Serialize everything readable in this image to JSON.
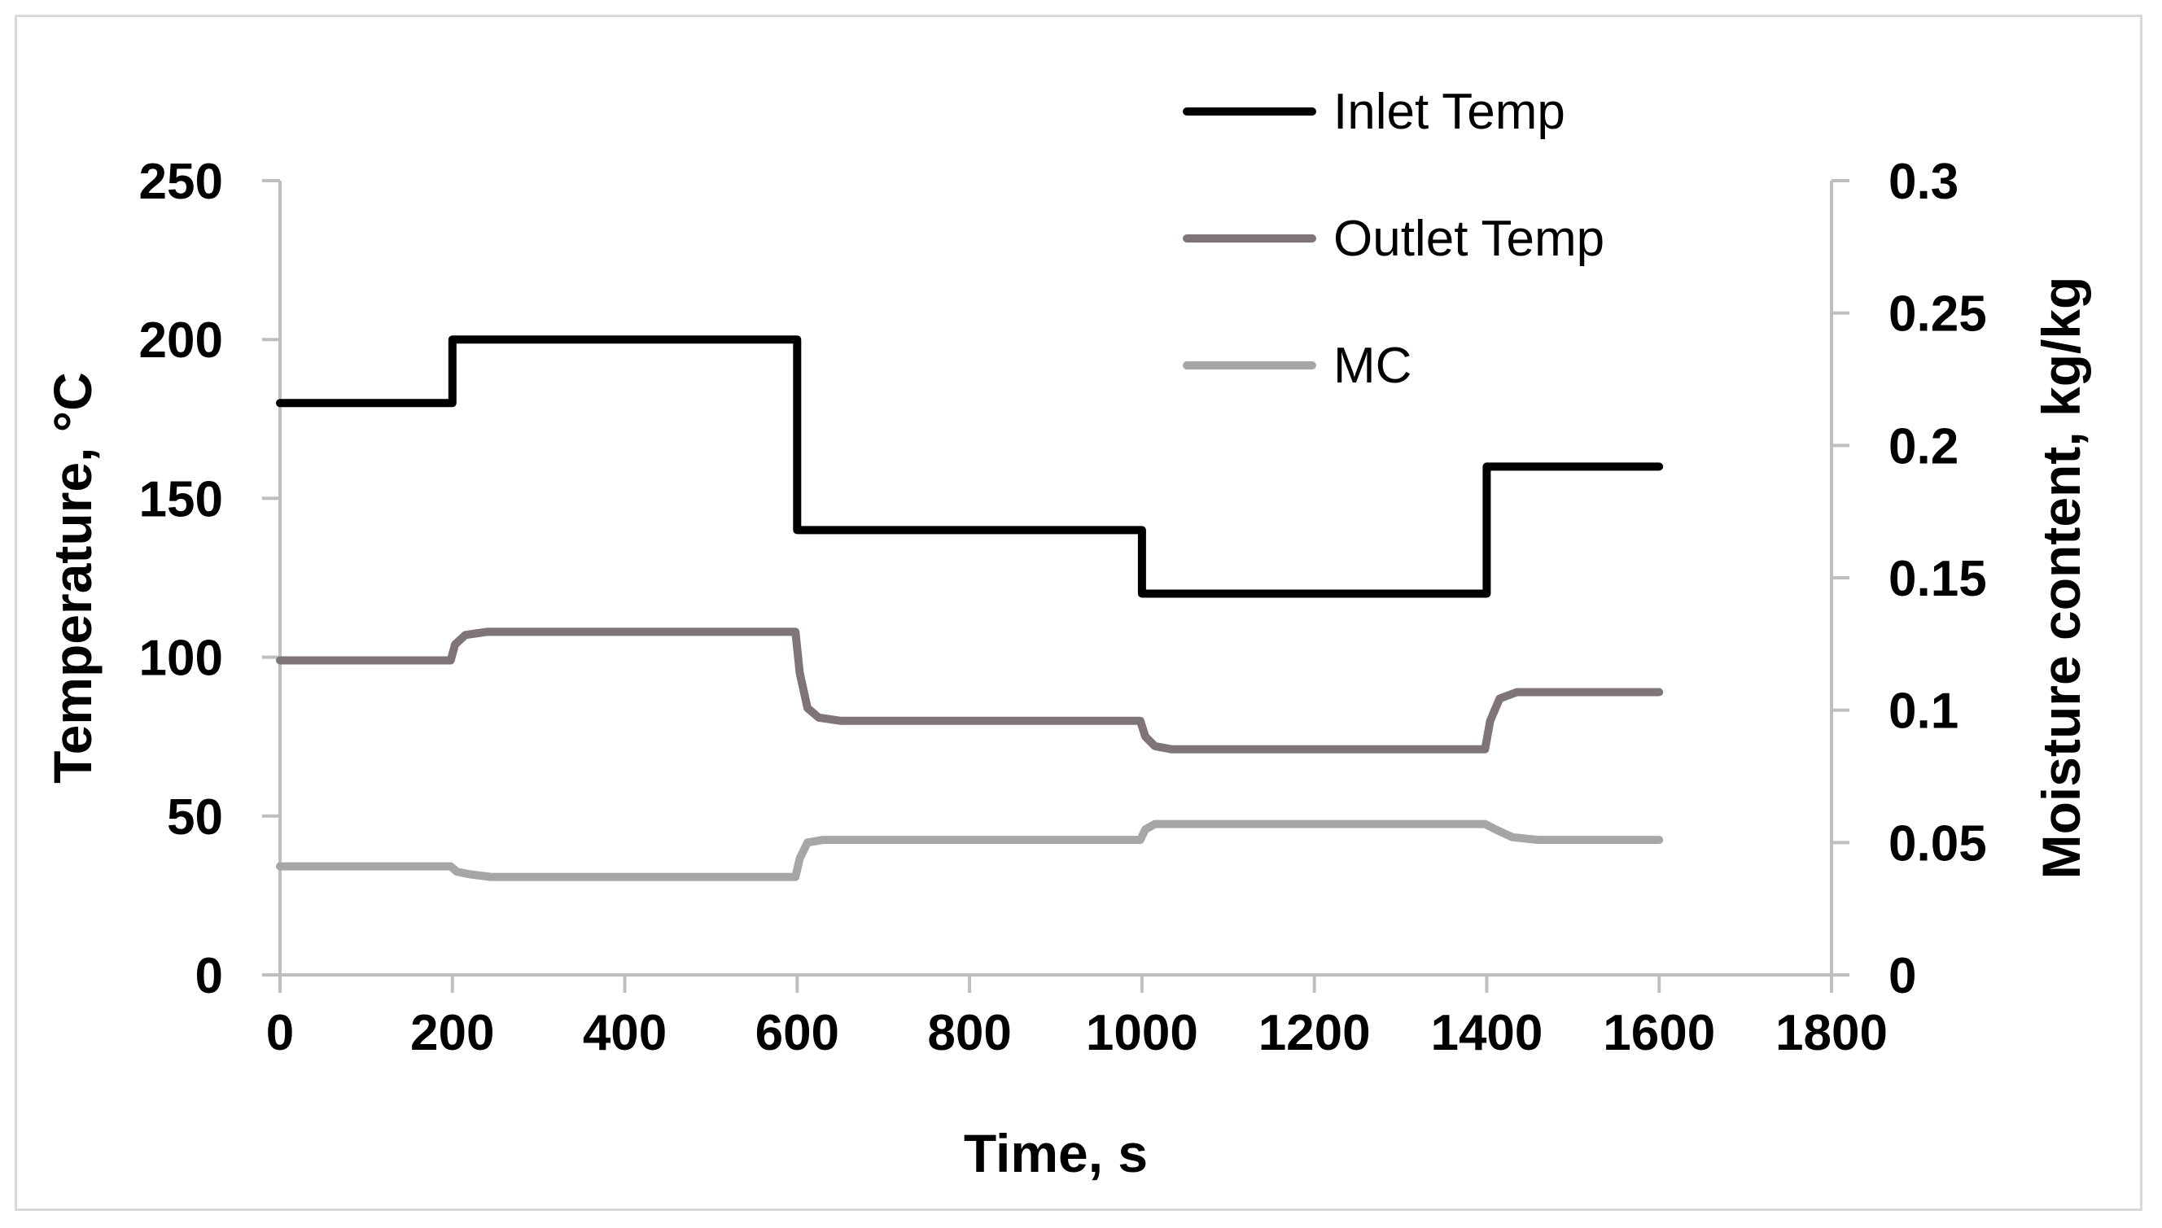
{
  "chart_data": {
    "type": "line",
    "title": "",
    "xlabel": "Time, s",
    "ylabel": "Temperature, °C",
    "y2label": "Moisture content, kg/kg",
    "xlim": [
      0,
      1800
    ],
    "ylim": [
      0,
      250
    ],
    "y2lim": [
      0,
      0.3
    ],
    "x_ticks": [
      0,
      200,
      400,
      600,
      800,
      1000,
      1200,
      1400,
      1600,
      1800
    ],
    "y_ticks": [
      0,
      50,
      100,
      150,
      200,
      250
    ],
    "y2_ticks": [
      "0",
      "0.05",
      "0.1",
      "0.15",
      "0.2",
      "0.25",
      "0.3"
    ],
    "y2_tick_values": [
      0,
      0.05,
      0.1,
      0.15,
      0.2,
      0.25,
      0.3
    ],
    "grid": false,
    "legend_position": "top",
    "series": [
      {
        "name": "Inlet Temp",
        "axis": "left",
        "color": "#000000",
        "x": [
          0,
          200,
          200,
          600,
          600,
          1000,
          1000,
          1400,
          1400,
          1600
        ],
        "y": [
          180,
          180,
          200,
          200,
          140,
          140,
          120,
          120,
          160,
          160
        ]
      },
      {
        "name": "Outlet Temp",
        "axis": "left",
        "color": "#7f7478",
        "x": [
          0,
          198,
          203,
          215,
          240,
          598,
          603,
          612,
          625,
          650,
          998,
          1004,
          1015,
          1035,
          1398,
          1404,
          1415,
          1435,
          1600
        ],
        "y": [
          99,
          99,
          104,
          107,
          108,
          108,
          95,
          84,
          81,
          80,
          80,
          75,
          72,
          71,
          71,
          80,
          87,
          89,
          89
        ]
      },
      {
        "name": "MC",
        "axis": "right",
        "color": "#a6a6a6",
        "x": [
          0,
          198,
          205,
          220,
          245,
          598,
          603,
          612,
          630,
          998,
          1004,
          1015,
          1035,
          1398,
          1410,
          1430,
          1460,
          1600
        ],
        "y": [
          0.041,
          0.041,
          0.039,
          0.038,
          0.037,
          0.037,
          0.044,
          0.05,
          0.051,
          0.051,
          0.055,
          0.057,
          0.057,
          0.057,
          0.055,
          0.052,
          0.051,
          0.051
        ]
      }
    ]
  }
}
